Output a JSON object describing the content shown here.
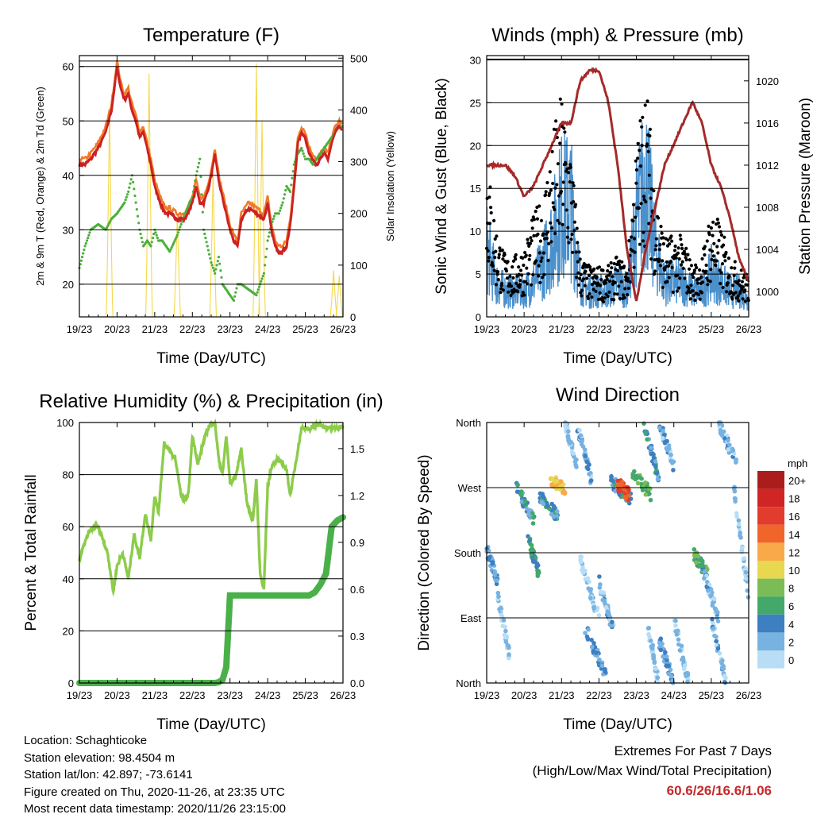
{
  "x_ticks": [
    "19/23",
    "20/23",
    "21/23",
    "22/23",
    "23/23",
    "24/23",
    "25/23",
    "26/23"
  ],
  "info": {
    "location": "Location: Schaghticoke",
    "elevation": "Station elevation: 98.4504 m",
    "latlon": "Station lat/lon: 42.897; -73.6141",
    "created": "Figure created on Thu, 2020-11-26, at 23:35 UTC",
    "recent": "Most recent data timestamp: 2020/11/26 23:15:00"
  },
  "extremes": {
    "line1": "Extremes For Past 7 Days",
    "line2": "(High/Low/Max Wind/Total Precipitation)",
    "values": "60.6/26/16.6/1.06"
  },
  "chart_data": [
    {
      "id": "temperature",
      "type": "line",
      "title": "Temperature (F)",
      "xlabel": "Time (Day/UTC)",
      "ylabel": "2m & 9m T (Red, Orange) & 2m Td (Green)",
      "y2label": "Solar Insolation (Yellow)",
      "xlim": [
        0,
        7
      ],
      "ylim": [
        14,
        62
      ],
      "yticks": [
        20,
        30,
        40,
        50,
        60
      ],
      "y2lim": [
        0,
        505
      ],
      "y2ticks": [
        0,
        100,
        200,
        300,
        400,
        500
      ],
      "hlines": [
        61
      ],
      "x_day": [
        0,
        0.15,
        0.3,
        0.5,
        0.7,
        0.85,
        1,
        1.1,
        1.2,
        1.3,
        1.4,
        1.5,
        1.6,
        1.7,
        1.8,
        1.9,
        2,
        2.1,
        2.2,
        2.3,
        2.4,
        2.6,
        2.8,
        3,
        3.1,
        3.2,
        3.3,
        3.4,
        3.5,
        3.6,
        3.7,
        3.8,
        3.9,
        4,
        4.1,
        4.2,
        4.3,
        4.5,
        4.7,
        4.9,
        5,
        5.1,
        5.2,
        5.3,
        5.4,
        5.5,
        5.6,
        5.7,
        5.8,
        5.9,
        6,
        6.1,
        6.2,
        6.3,
        6.4,
        6.5,
        6.6,
        6.7,
        6.8,
        6.9,
        7
      ],
      "series": [
        {
          "name": "2m T",
          "color": "#cc2222",
          "values": [
            42,
            42,
            43,
            45,
            48,
            52,
            60,
            56,
            54,
            55,
            52,
            50,
            47,
            48,
            45,
            42,
            38,
            36,
            34,
            33,
            33,
            32,
            32,
            35,
            38,
            35,
            35,
            37,
            40,
            44,
            39,
            36,
            33,
            30,
            28,
            27,
            32,
            34,
            33,
            32,
            35,
            30,
            27,
            26,
            26,
            27,
            31,
            38,
            46,
            48,
            47,
            44,
            43,
            42,
            43,
            44,
            43,
            46,
            48,
            49,
            48
          ]
        },
        {
          "name": "9m T",
          "color": "#f07a28",
          "values": [
            43,
            43,
            44,
            46,
            49,
            53,
            61,
            57,
            55,
            56,
            53,
            51,
            48,
            49,
            46,
            43,
            39,
            37,
            35,
            34,
            34,
            33,
            33,
            36,
            39,
            36,
            36,
            38,
            41,
            45,
            40,
            37,
            34,
            31,
            29,
            28,
            33,
            35,
            34,
            33,
            36,
            31,
            28,
            27,
            27,
            28,
            32,
            39,
            47,
            49,
            48,
            45,
            44,
            43,
            44,
            45,
            44,
            47,
            49,
            50,
            49
          ]
        },
        {
          "name": "2m Td",
          "color": "#4caf3a",
          "values": [
            23,
            27,
            30,
            31,
            30,
            32,
            33,
            34,
            35,
            37,
            40,
            35,
            30,
            27,
            28,
            27,
            30,
            28,
            28,
            27,
            26,
            29,
            33,
            36,
            40,
            43,
            30,
            27,
            24,
            22,
            25,
            20,
            19,
            18,
            17,
            20,
            20,
            19,
            18,
            22,
            28,
            31,
            33,
            33,
            35,
            38,
            37,
            42,
            44,
            45,
            43,
            43,
            42,
            43,
            44,
            45,
            46,
            47,
            48,
            49,
            49
          ]
        },
        {
          "name": "Solar Insolation",
          "color": "#f5d84a",
          "axis": "y2",
          "peaks": [
            {
              "x": 0.8,
              "v": 400
            },
            {
              "x": 1.85,
              "v": 470
            },
            {
              "x": 2.6,
              "v": 200
            },
            {
              "x": 3.55,
              "v": 280
            },
            {
              "x": 4.7,
              "v": 490
            },
            {
              "x": 4.85,
              "v": 380
            },
            {
              "x": 6.75,
              "v": 90
            },
            {
              "x": 6.9,
              "v": 80
            }
          ]
        }
      ]
    },
    {
      "id": "winds",
      "type": "scatter",
      "title": "Winds (mph) & Pressure (mb)",
      "xlabel": "Time (Day/UTC)",
      "ylabel": "Sonic Wind & Gust (Blue, Black)",
      "y2label": "Station Pressure (Maroon)",
      "xlim": [
        0,
        7
      ],
      "ylim": [
        0,
        30.5
      ],
      "yticks": [
        0,
        5,
        10,
        15,
        20,
        25,
        30
      ],
      "y2lim": [
        997.6,
        1022.4
      ],
      "y2ticks": [
        1000,
        1004,
        1008,
        1012,
        1016,
        1020
      ],
      "hlines": [
        30.1
      ],
      "x_day": [
        0,
        0.25,
        0.5,
        0.75,
        1,
        1.25,
        1.5,
        1.75,
        2,
        2.25,
        2.5,
        2.75,
        3,
        3.25,
        3.5,
        3.75,
        4,
        4.25,
        4.5,
        4.75,
        5,
        5.25,
        5.5,
        5.75,
        6,
        6.25,
        6.5,
        6.75,
        7
      ],
      "series": [
        {
          "name": "Sonic Wind",
          "color": "#4a90cc",
          "values": [
            8,
            4,
            3,
            3,
            3,
            4,
            6,
            9,
            13,
            13,
            4,
            3,
            3,
            3,
            4,
            3,
            11,
            16,
            8,
            4,
            4,
            4,
            3,
            3,
            5,
            4,
            3,
            3,
            2
          ]
        },
        {
          "name": "Gust",
          "color": "#000000",
          "values": [
            16,
            9,
            6,
            6,
            7,
            10,
            12,
            18,
            22,
            17,
            6,
            5,
            5,
            5,
            6,
            5,
            17,
            24,
            13,
            8,
            8,
            8,
            5,
            6,
            11,
            9,
            6,
            5,
            4
          ]
        },
        {
          "name": "Station Pressure",
          "color": "#a52a2a",
          "axis": "y2",
          "values": [
            1012,
            1012,
            1012,
            1011,
            1009,
            1010,
            1012,
            1014,
            1016,
            1016,
            1020,
            1021,
            1021,
            1018,
            1012,
            1004,
            999,
            1004,
            1008,
            1012,
            1014,
            1016,
            1018,
            1016,
            1012,
            1010,
            1007,
            1003,
            1001
          ]
        }
      ]
    },
    {
      "id": "rh_precip",
      "type": "line",
      "title": "Relative Humidity (%) & Precipitation (in)",
      "xlabel": "Time (Day/UTC)",
      "ylabel": "Percent & Total Rainfall",
      "xlim": [
        0,
        7
      ],
      "ylim": [
        0,
        100
      ],
      "yticks": [
        0,
        20,
        40,
        60,
        80,
        100
      ],
      "y2lim": [
        0,
        1.667
      ],
      "y2ticks": [
        0.0,
        0.3,
        0.6,
        0.9,
        1.2,
        1.5
      ],
      "y2ticklabels": [
        "0.0",
        "0.3",
        "0.6",
        "0.9",
        "1.2",
        "1.5"
      ],
      "x_day": [
        0,
        0.1,
        0.25,
        0.4,
        0.5,
        0.6,
        0.75,
        0.9,
        1,
        1.15,
        1.3,
        1.45,
        1.6,
        1.75,
        1.9,
        2,
        2.1,
        2.25,
        2.4,
        2.55,
        2.7,
        2.8,
        2.9,
        3,
        3.15,
        3.3,
        3.45,
        3.6,
        3.7,
        3.8,
        3.9,
        4,
        4.15,
        4.3,
        4.45,
        4.6,
        4.7,
        4.8,
        4.9,
        5,
        5.1,
        5.25,
        5.4,
        5.5,
        5.6,
        5.75,
        5.9,
        6,
        6.1,
        6.25,
        6.4,
        6.55,
        6.7,
        6.85,
        7
      ],
      "series": [
        {
          "name": "Relative Humidity",
          "color": "#8ccc4a",
          "values": [
            47,
            52,
            58,
            60,
            60,
            56,
            50,
            35,
            45,
            50,
            40,
            57,
            48,
            65,
            55,
            72,
            65,
            92,
            89,
            86,
            72,
            70,
            73,
            95,
            84,
            93,
            99,
            100,
            86,
            80,
            95,
            77,
            79,
            90,
            69,
            62,
            78,
            42,
            36,
            75,
            83,
            86,
            84,
            82,
            72,
            85,
            98,
            98,
            97,
            99,
            99,
            98,
            98,
            98,
            99
          ]
        },
        {
          "name": "Total Rainfall",
          "color": "#4ab04a",
          "axis": "y2",
          "values": [
            0,
            0,
            0,
            0,
            0,
            0,
            0,
            0,
            0,
            0,
            0,
            0,
            0,
            0,
            0,
            0,
            0,
            0,
            0,
            0,
            0,
            0,
            0,
            0,
            0,
            0,
            0,
            0,
            0.005,
            0.02,
            0.1,
            0.56,
            0.56,
            0.56,
            0.56,
            0.56,
            0.56,
            0.56,
            0.56,
            0.56,
            0.56,
            0.56,
            0.56,
            0.56,
            0.56,
            0.56,
            0.56,
            0.56,
            0.56,
            0.58,
            0.63,
            0.7,
            1.0,
            1.04,
            1.06
          ]
        }
      ]
    },
    {
      "id": "wind_direction",
      "type": "scatter",
      "title": "Wind Direction",
      "xlabel": "Time (Day/UTC)",
      "ylabel": "Direction (Colored By Speed)",
      "xlim": [
        0,
        7
      ],
      "ylim": [
        0,
        360
      ],
      "yticks": [
        0,
        90,
        180,
        270,
        360
      ],
      "yticklabels": [
        "North",
        "East",
        "South",
        "West",
        "North"
      ],
      "clusters": [
        {
          "x": [
            0,
            0.3
          ],
          "dir": [
            185,
            140
          ],
          "speed": 3
        },
        {
          "x": [
            0.3,
            0.6
          ],
          "dir": [
            120,
            40
          ],
          "speed": 1
        },
        {
          "x": [
            0.8,
            1.3
          ],
          "dir": [
            270,
            220
          ],
          "speed": 4
        },
        {
          "x": [
            1.1,
            1.4
          ],
          "dir": [
            200,
            150
          ],
          "speed": 5
        },
        {
          "x": [
            1.4,
            1.9
          ],
          "dir": [
            260,
            230
          ],
          "speed": 4
        },
        {
          "x": [
            1.7,
            2.1
          ],
          "dir": [
            280,
            270
          ],
          "speed": 11
        },
        {
          "x": [
            2.1,
            2.4
          ],
          "dir": [
            360,
            300
          ],
          "speed": 1
        },
        {
          "x": [
            2.4,
            2.8
          ],
          "dir": [
            360,
            280
          ],
          "speed": 2
        },
        {
          "x": [
            2.5,
            3.0
          ],
          "dir": [
            170,
            90
          ],
          "speed": 1
        },
        {
          "x": [
            2.6,
            3.2
          ],
          "dir": [
            80,
            10
          ],
          "speed": 3
        },
        {
          "x": [
            3.0,
            3.4
          ],
          "dir": [
            140,
            70
          ],
          "speed": 2
        },
        {
          "x": [
            3.3,
            3.9
          ],
          "dir": [
            280,
            250
          ],
          "speed": 4
        },
        {
          "x": [
            3.5,
            3.8
          ],
          "dir": [
            275,
            260
          ],
          "speed": 15
        },
        {
          "x": [
            3.9,
            4.4
          ],
          "dir": [
            290,
            260
          ],
          "speed": 7
        },
        {
          "x": [
            4.2,
            4.6
          ],
          "dir": [
            360,
            280
          ],
          "speed": 4
        },
        {
          "x": [
            4.3,
            4.6
          ],
          "dir": [
            80,
            0
          ],
          "speed": 1
        },
        {
          "x": [
            4.6,
            5.0
          ],
          "dir": [
            60,
            0
          ],
          "speed": 3
        },
        {
          "x": [
            4.6,
            5.0
          ],
          "dir": [
            360,
            300
          ],
          "speed": 2
        },
        {
          "x": [
            5.0,
            5.4
          ],
          "dir": [
            90,
            0
          ],
          "speed": 1
        },
        {
          "x": [
            5.5,
            5.9
          ],
          "dir": [
            180,
            150
          ],
          "speed": 6
        },
        {
          "x": [
            5.8,
            6.2
          ],
          "dir": [
            150,
            90
          ],
          "speed": 2
        },
        {
          "x": [
            6.0,
            6.4
          ],
          "dir": [
            90,
            0
          ],
          "speed": 2
        },
        {
          "x": [
            6.2,
            6.7
          ],
          "dir": [
            360,
            300
          ],
          "speed": 2
        },
        {
          "x": [
            6.6,
            7.0
          ],
          "dir": [
            270,
            120
          ],
          "speed": 1
        }
      ],
      "colorbar": {
        "label": "mph",
        "ticklabels": [
          "20+",
          "18",
          "16",
          "14",
          "12",
          "10",
          "8",
          "6",
          "4",
          "2",
          "0"
        ],
        "colors": [
          "#ab1d1d",
          "#cf2524",
          "#e23c2c",
          "#f0652a",
          "#f9a94a",
          "#e7d84f",
          "#7cbc56",
          "#42a96a",
          "#3d7fc1",
          "#77b2e1",
          "#b7def5"
        ]
      }
    }
  ]
}
